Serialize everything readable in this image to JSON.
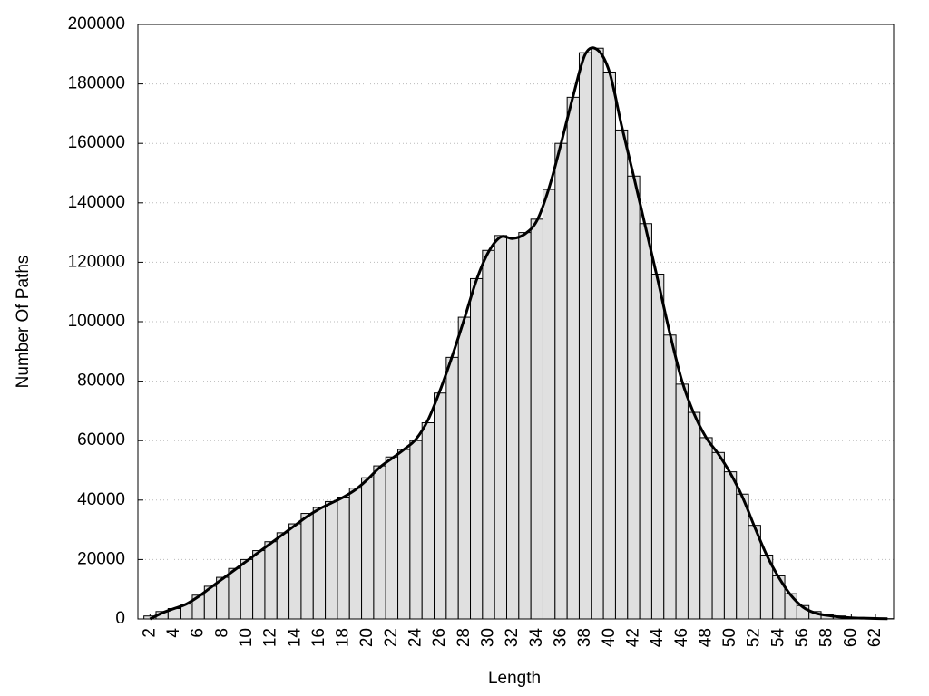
{
  "chart_data": {
    "type": "histogram",
    "x_label": "Length",
    "y_label": "Number Of Paths",
    "x": [
      2,
      3,
      4,
      5,
      6,
      7,
      8,
      9,
      10,
      11,
      12,
      13,
      14,
      15,
      16,
      17,
      18,
      19,
      20,
      21,
      22,
      23,
      24,
      25,
      26,
      27,
      28,
      29,
      30,
      31,
      32,
      33,
      34,
      35,
      36,
      37,
      38,
      39,
      40,
      41,
      42,
      43,
      44,
      45,
      46,
      47,
      48,
      49,
      50,
      51,
      52,
      53,
      54,
      55,
      56,
      57,
      58,
      59,
      60,
      61,
      62,
      63
    ],
    "series": [
      {
        "type": "bar",
        "color": "#e0e0e0",
        "values": [
          1000,
          2500,
          3500,
          5000,
          8000,
          11000,
          14000,
          17000,
          20000,
          23000,
          26000,
          29000,
          32000,
          35500,
          37500,
          39500,
          41000,
          44000,
          47500,
          51500,
          54500,
          57000,
          60000,
          66000,
          76000,
          88000,
          101500,
          114500,
          124000,
          129000,
          128500,
          130000,
          134500,
          144500,
          160000,
          175500,
          190500,
          192000,
          184000,
          164500,
          149000,
          133000,
          116000,
          95500,
          79000,
          69500,
          61000,
          56000,
          49500,
          42000,
          31500,
          21500,
          14500,
          8500,
          4500,
          2500,
          1500,
          1000,
          500,
          300,
          200,
          100
        ]
      },
      {
        "type": "line",
        "color": "#000000",
        "values": [
          0,
          2000,
          3500,
          5000,
          7500,
          10500,
          13500,
          16500,
          19500,
          22500,
          25500,
          28500,
          31500,
          34500,
          37000,
          39000,
          41000,
          43500,
          47000,
          51000,
          54000,
          57000,
          60500,
          67000,
          77000,
          88500,
          101000,
          114000,
          123500,
          128500,
          128000,
          129500,
          134000,
          145000,
          160000,
          176000,
          190000,
          191500,
          184000,
          166000,
          149000,
          131500,
          114000,
          96000,
          80000,
          69000,
          61000,
          55500,
          49000,
          41000,
          31000,
          21500,
          14000,
          8000,
          4000,
          2000,
          1200,
          700,
          400,
          250,
          150,
          80
        ]
      }
    ],
    "xlim": [
      1,
      63.5
    ],
    "ylim": [
      0,
      200000
    ],
    "xticks": [
      2,
      4,
      6,
      8,
      10,
      12,
      14,
      16,
      18,
      20,
      22,
      24,
      26,
      28,
      30,
      32,
      34,
      36,
      38,
      40,
      42,
      44,
      46,
      48,
      50,
      52,
      54,
      56,
      58,
      60,
      62
    ],
    "yticks": [
      0,
      20000,
      40000,
      60000,
      80000,
      100000,
      120000,
      140000,
      160000,
      180000,
      200000
    ],
    "grid": true
  }
}
